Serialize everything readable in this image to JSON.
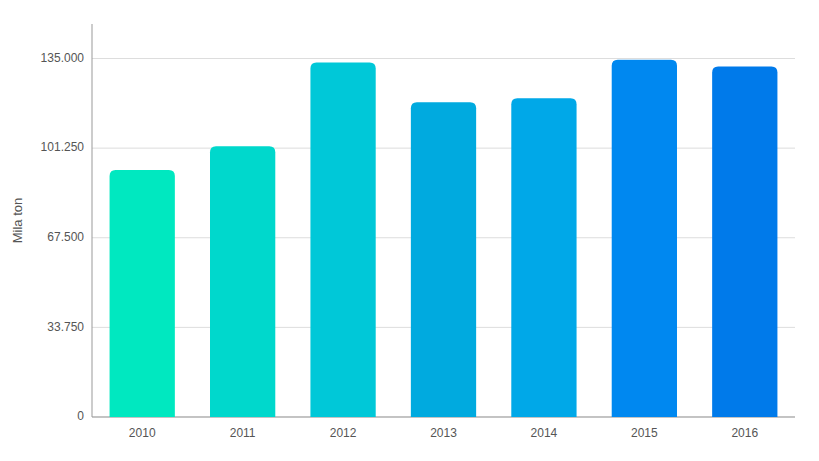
{
  "chart_data": {
    "type": "bar",
    "categories": [
      "2010",
      "2011",
      "2012",
      "2013",
      "2014",
      "2015",
      "2016"
    ],
    "values": [
      93000,
      102000,
      133500,
      118500,
      120000,
      134500,
      132000
    ],
    "colors": [
      "#00E8C0",
      "#00D8CC",
      "#00C8D8",
      "#00AADF",
      "#00A8E8",
      "#0088F0",
      "#007AEA"
    ],
    "ylabel": "Mila ton",
    "ylim": [
      0,
      148000
    ],
    "yticks": [
      0,
      {
        "value": 33750,
        "label": "33.750"
      },
      {
        "value": 67500,
        "label": "67.500"
      },
      {
        "value": 101250,
        "label": "101.250"
      },
      {
        "value": 135000,
        "label": "135.000"
      }
    ],
    "grid": true
  }
}
